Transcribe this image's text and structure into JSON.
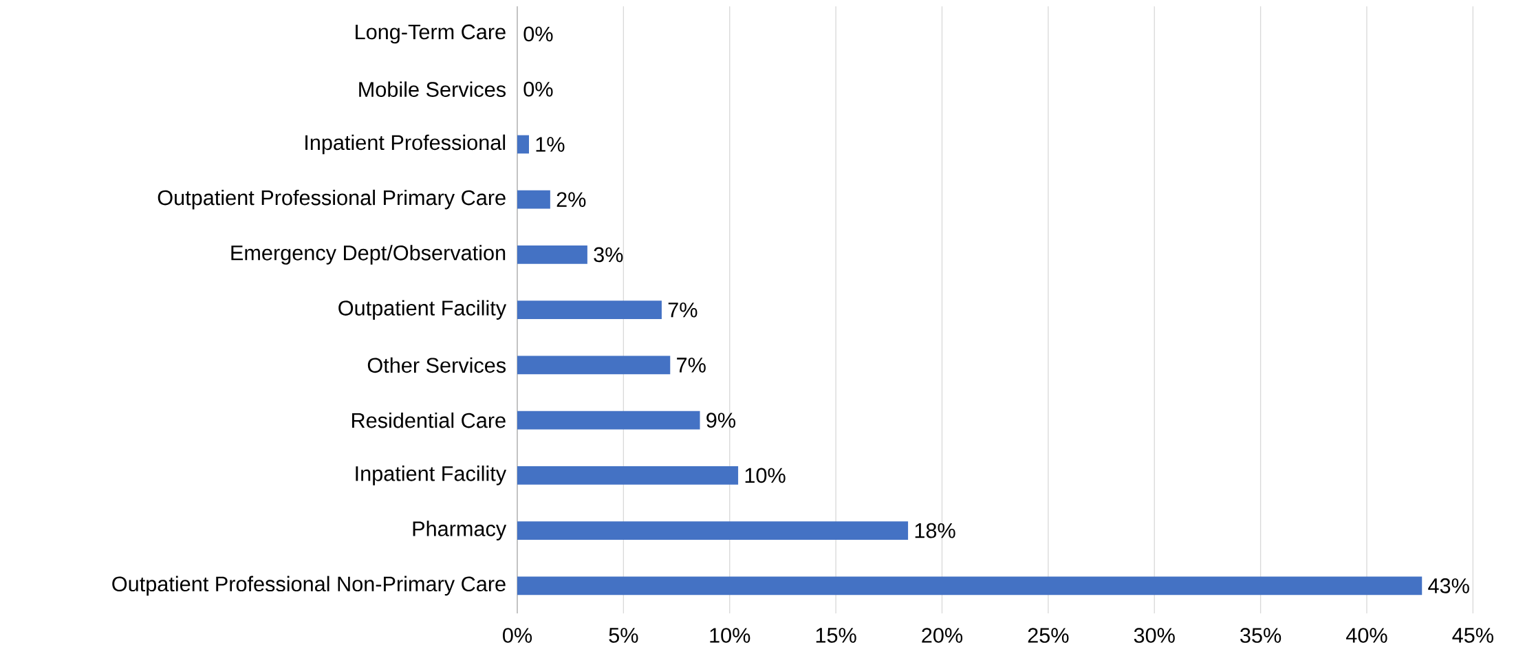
{
  "chart_data": {
    "type": "bar",
    "orientation": "horizontal",
    "color": "#4472c4",
    "grid": "x",
    "categories": [
      "Long-Term Care",
      "Mobile Services",
      "Inpatient Professional",
      "Outpatient Professional Primary Care",
      "Emergency Dept/Observation",
      "Outpatient Facility",
      "Other Services",
      "Residential Care",
      "Inpatient Facility",
      "Pharmacy",
      "Outpatient Professional Non-Primary Care"
    ],
    "values": [
      0,
      0,
      0.55,
      1.55,
      3.3,
      6.8,
      7.2,
      8.6,
      10.4,
      18.4,
      42.6
    ],
    "value_labels": [
      "0%",
      "0%",
      "1%",
      "2%",
      "3%",
      "7%",
      "7%",
      "9%",
      "10%",
      "18%",
      "43%"
    ],
    "xlim": [
      0,
      45
    ],
    "xticks": [
      {
        "value": 0,
        "label": "0%"
      },
      {
        "value": 5,
        "label": "5%"
      },
      {
        "value": 10,
        "label": "10%"
      },
      {
        "value": 15,
        "label": "15%"
      },
      {
        "value": 20,
        "label": "20%"
      },
      {
        "value": 25,
        "label": "25%"
      },
      {
        "value": 30,
        "label": "30%"
      },
      {
        "value": 35,
        "label": "35%"
      },
      {
        "value": 40,
        "label": "40%"
      },
      {
        "value": 45,
        "label": "45%"
      }
    ]
  }
}
